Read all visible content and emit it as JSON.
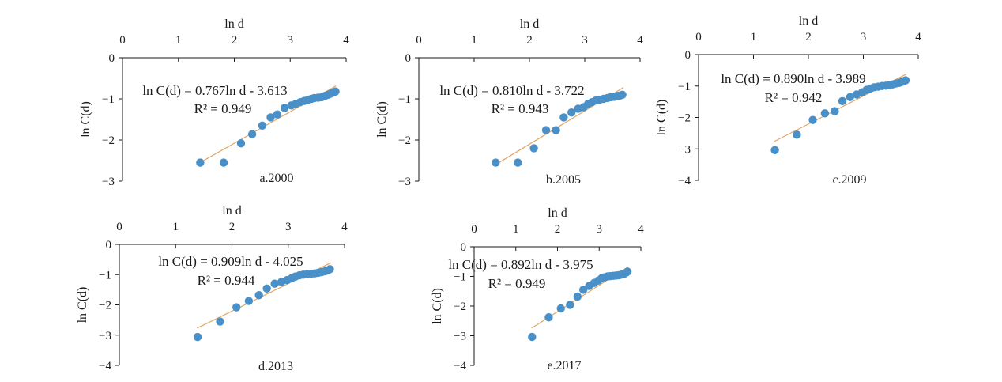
{
  "colors": {
    "points": "#4a90c8",
    "fit_line": "#e0a663",
    "axes": "#1a1a1a"
  },
  "chart_data": [
    {
      "type": "scatter",
      "panel_label": "a.2000",
      "xlabel": "ln d",
      "ylabel": "ln C(d)",
      "xlim": [
        0,
        4
      ],
      "ylim": [
        -3,
        0
      ],
      "x_ticks": [
        "0",
        "1",
        "2",
        "3",
        "4"
      ],
      "y_ticks": [
        "0",
        "−1",
        "−2",
        "−3"
      ],
      "equation": "ln C(d) = 0.767ln d - 3.613",
      "r2": "R² = 0.949",
      "fit": {
        "slope": 0.767,
        "intercept": -3.613,
        "x_range": [
          1.38,
          3.82
        ]
      },
      "points": [
        [
          1.39,
          -2.55
        ],
        [
          1.81,
          -2.55
        ],
        [
          2.12,
          -2.08
        ],
        [
          2.32,
          -1.86
        ],
        [
          2.5,
          -1.65
        ],
        [
          2.65,
          -1.45
        ],
        [
          2.77,
          -1.38
        ],
        [
          2.9,
          -1.22
        ],
        [
          3.02,
          -1.16
        ],
        [
          3.1,
          -1.12
        ],
        [
          3.18,
          -1.08
        ],
        [
          3.25,
          -1.05
        ],
        [
          3.32,
          -1.02
        ],
        [
          3.38,
          -1.0
        ],
        [
          3.43,
          -0.98
        ],
        [
          3.5,
          -0.97
        ],
        [
          3.56,
          -0.96
        ],
        [
          3.62,
          -0.93
        ],
        [
          3.68,
          -0.9
        ],
        [
          3.73,
          -0.87
        ],
        [
          3.78,
          -0.84
        ],
        [
          3.81,
          -0.82
        ]
      ]
    },
    {
      "type": "scatter",
      "panel_label": "b.2005",
      "xlabel": "ln d",
      "ylabel": "ln C(d)",
      "xlim": [
        0,
        4
      ],
      "ylim": [
        -3,
        0
      ],
      "x_ticks": [
        "0",
        "1",
        "2",
        "3",
        "4"
      ],
      "y_ticks": [
        "0",
        "−1",
        "−2",
        "−3"
      ],
      "equation": "ln C(d) = 0.810ln d - 3.722",
      "r2": "R² = 0.943",
      "fit": {
        "slope": 0.81,
        "intercept": -3.722,
        "x_range": [
          1.36,
          3.7
        ]
      },
      "points": [
        [
          1.39,
          -2.55
        ],
        [
          1.79,
          -2.55
        ],
        [
          2.08,
          -2.2
        ],
        [
          2.3,
          -1.76
        ],
        [
          2.48,
          -1.76
        ],
        [
          2.62,
          -1.45
        ],
        [
          2.76,
          -1.33
        ],
        [
          2.88,
          -1.24
        ],
        [
          2.98,
          -1.2
        ],
        [
          3.06,
          -1.12
        ],
        [
          3.13,
          -1.08
        ],
        [
          3.2,
          -1.04
        ],
        [
          3.27,
          -1.02
        ],
        [
          3.34,
          -1.0
        ],
        [
          3.41,
          -0.98
        ],
        [
          3.47,
          -0.96
        ],
        [
          3.53,
          -0.95
        ],
        [
          3.59,
          -0.93
        ],
        [
          3.64,
          -0.92
        ],
        [
          3.68,
          -0.9
        ]
      ]
    },
    {
      "type": "scatter",
      "panel_label": "c.2009",
      "xlabel": "ln d",
      "ylabel": "ln C(d)",
      "xlim": [
        0,
        4
      ],
      "ylim": [
        -4,
        0
      ],
      "x_ticks": [
        "0",
        "1",
        "2",
        "3",
        "4"
      ],
      "y_ticks": [
        "0",
        "−1",
        "−2",
        "−3",
        "−4"
      ],
      "equation": "ln C(d) = 0.890ln d - 3.989",
      "r2": "R² = 0.942",
      "fit": {
        "slope": 0.89,
        "intercept": -3.989,
        "x_range": [
          1.38,
          3.78
        ]
      },
      "points": [
        [
          1.39,
          -3.04
        ],
        [
          1.79,
          -2.55
        ],
        [
          2.08,
          -2.08
        ],
        [
          2.3,
          -1.87
        ],
        [
          2.48,
          -1.8
        ],
        [
          2.62,
          -1.48
        ],
        [
          2.76,
          -1.35
        ],
        [
          2.88,
          -1.27
        ],
        [
          2.98,
          -1.2
        ],
        [
          3.06,
          -1.12
        ],
        [
          3.13,
          -1.08
        ],
        [
          3.2,
          -1.04
        ],
        [
          3.27,
          -1.02
        ],
        [
          3.34,
          -1.0
        ],
        [
          3.41,
          -0.99
        ],
        [
          3.47,
          -0.97
        ],
        [
          3.53,
          -0.95
        ],
        [
          3.59,
          -0.92
        ],
        [
          3.65,
          -0.9
        ],
        [
          3.7,
          -0.87
        ],
        [
          3.74,
          -0.84
        ],
        [
          3.77,
          -0.82
        ]
      ]
    },
    {
      "type": "scatter",
      "panel_label": "d.2013",
      "xlabel": "ln d",
      "ylabel": "ln C(d)",
      "xlim": [
        0,
        4
      ],
      "ylim": [
        -4,
        0
      ],
      "x_ticks": [
        "0",
        "1",
        "2",
        "3",
        "4"
      ],
      "y_ticks": [
        "0",
        "−1",
        "−2",
        "−3",
        "−4"
      ],
      "equation": "ln C(d) = 0.909ln d - 4.025",
      "r2": "R² = 0.944",
      "fit": {
        "slope": 0.909,
        "intercept": -4.025,
        "x_range": [
          1.38,
          3.76
        ]
      },
      "points": [
        [
          1.39,
          -3.06
        ],
        [
          1.79,
          -2.55
        ],
        [
          2.08,
          -2.08
        ],
        [
          2.3,
          -1.87
        ],
        [
          2.48,
          -1.68
        ],
        [
          2.62,
          -1.46
        ],
        [
          2.76,
          -1.3
        ],
        [
          2.88,
          -1.24
        ],
        [
          2.98,
          -1.18
        ],
        [
          3.06,
          -1.12
        ],
        [
          3.13,
          -1.06
        ],
        [
          3.2,
          -1.02
        ],
        [
          3.27,
          -1.0
        ],
        [
          3.34,
          -0.98
        ],
        [
          3.41,
          -0.97
        ],
        [
          3.47,
          -0.96
        ],
        [
          3.53,
          -0.94
        ],
        [
          3.59,
          -0.92
        ],
        [
          3.65,
          -0.89
        ],
        [
          3.7,
          -0.86
        ],
        [
          3.74,
          -0.82
        ]
      ]
    },
    {
      "type": "scatter",
      "panel_label": "e.2017",
      "xlabel": "ln d",
      "ylabel": "ln C(d)",
      "xlim": [
        0,
        4
      ],
      "ylim": [
        -4,
        0
      ],
      "x_ticks": [
        "0",
        "1",
        "2",
        "3",
        "4"
      ],
      "y_ticks": [
        "0",
        "−1",
        "−2",
        "−3",
        "−4"
      ],
      "equation": "ln C(d) = 0.892ln d - 3.975",
      "r2": "R² = 0.949",
      "fit": {
        "slope": 0.892,
        "intercept": -3.975,
        "x_range": [
          1.38,
          3.7
        ]
      },
      "points": [
        [
          1.39,
          -3.04
        ],
        [
          1.79,
          -2.38
        ],
        [
          2.08,
          -2.08
        ],
        [
          2.3,
          -1.96
        ],
        [
          2.48,
          -1.68
        ],
        [
          2.62,
          -1.45
        ],
        [
          2.76,
          -1.32
        ],
        [
          2.88,
          -1.22
        ],
        [
          2.98,
          -1.14
        ],
        [
          3.06,
          -1.06
        ],
        [
          3.13,
          -1.03
        ],
        [
          3.2,
          -1.0
        ],
        [
          3.27,
          -0.99
        ],
        [
          3.34,
          -0.98
        ],
        [
          3.41,
          -0.97
        ],
        [
          3.47,
          -0.96
        ],
        [
          3.53,
          -0.94
        ],
        [
          3.59,
          -0.92
        ],
        [
          3.64,
          -0.88
        ],
        [
          3.68,
          -0.84
        ]
      ]
    }
  ]
}
